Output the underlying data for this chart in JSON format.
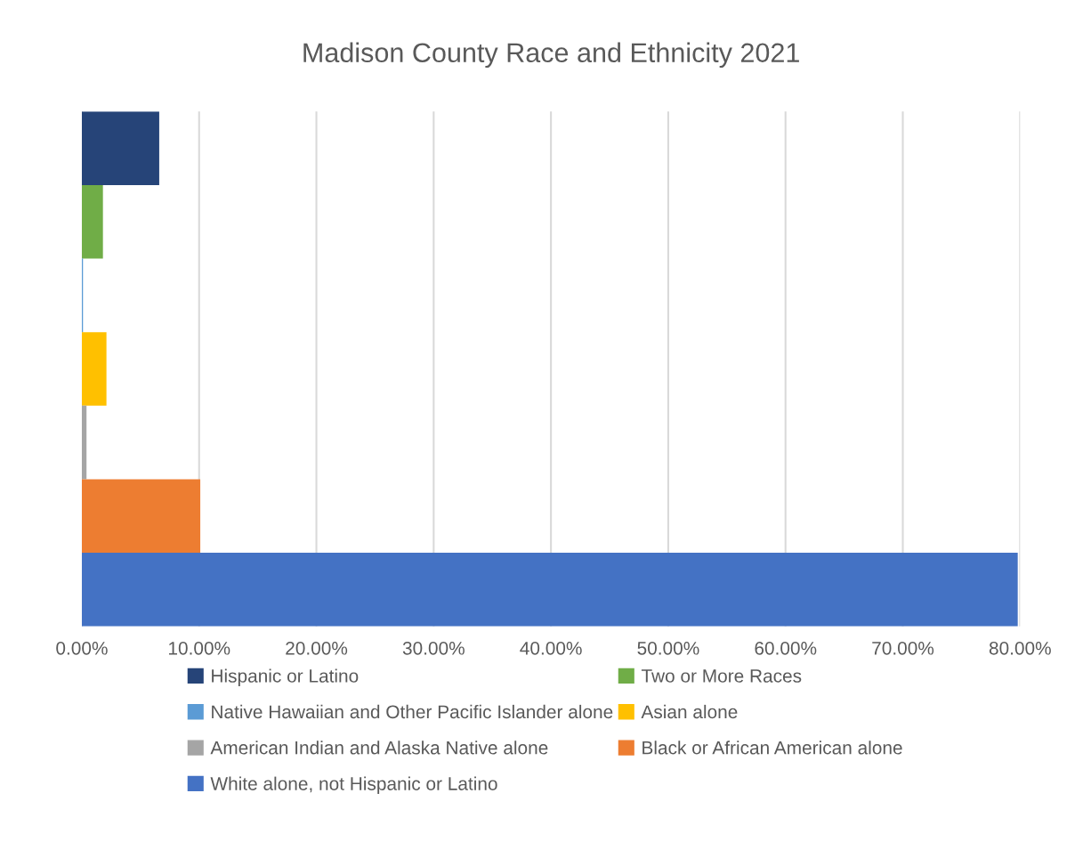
{
  "chart_data": {
    "type": "bar",
    "orientation": "horizontal",
    "title": "Madison County Race and Ethnicity 2021",
    "categories": [
      null,
      null,
      null,
      null,
      null,
      null,
      null
    ],
    "series": [
      {
        "name": "Hispanic or Latino",
        "color": "#264478",
        "values": [
          6.6,
          null,
          null,
          null,
          null,
          null,
          null
        ]
      },
      {
        "name": "Two or More Races",
        "color": "#70ad47",
        "values": [
          null,
          1.8,
          null,
          null,
          null,
          null,
          null
        ]
      },
      {
        "name": "Native Hawaiian and Other Pacific Islander alone",
        "color": "#5b9bd5",
        "values": [
          null,
          null,
          0.1,
          null,
          null,
          null,
          null
        ]
      },
      {
        "name": "Asian alone",
        "color": "#ffc000",
        "values": [
          null,
          null,
          null,
          2.1,
          null,
          null,
          null
        ]
      },
      {
        "name": "American Indian and Alaska Native alone",
        "color": "#a5a5a5",
        "values": [
          null,
          null,
          null,
          null,
          0.4,
          null,
          null
        ]
      },
      {
        "name": "Black or African American alone",
        "color": "#ed7d31",
        "values": [
          null,
          null,
          null,
          null,
          null,
          10.1,
          null
        ]
      },
      {
        "name": "White alone, not Hispanic or Latino",
        "color": "#4472c4",
        "values": [
          null,
          null,
          null,
          null,
          null,
          null,
          79.8
        ]
      }
    ],
    "xlim": [
      0,
      80
    ],
    "xticks": [
      {
        "value": 0,
        "label": "0.00%"
      },
      {
        "value": 10,
        "label": "10.00%"
      },
      {
        "value": 20,
        "label": "20.00%"
      },
      {
        "value": 30,
        "label": "30.00%"
      },
      {
        "value": 40,
        "label": "40.00%"
      },
      {
        "value": 50,
        "label": "50.00%"
      },
      {
        "value": 60,
        "label": "60.00%"
      },
      {
        "value": 70,
        "label": "70.00%"
      },
      {
        "value": 80,
        "label": "80.00%"
      }
    ],
    "grid": "x",
    "legend": "bottom",
    "tick_labels": "x"
  }
}
